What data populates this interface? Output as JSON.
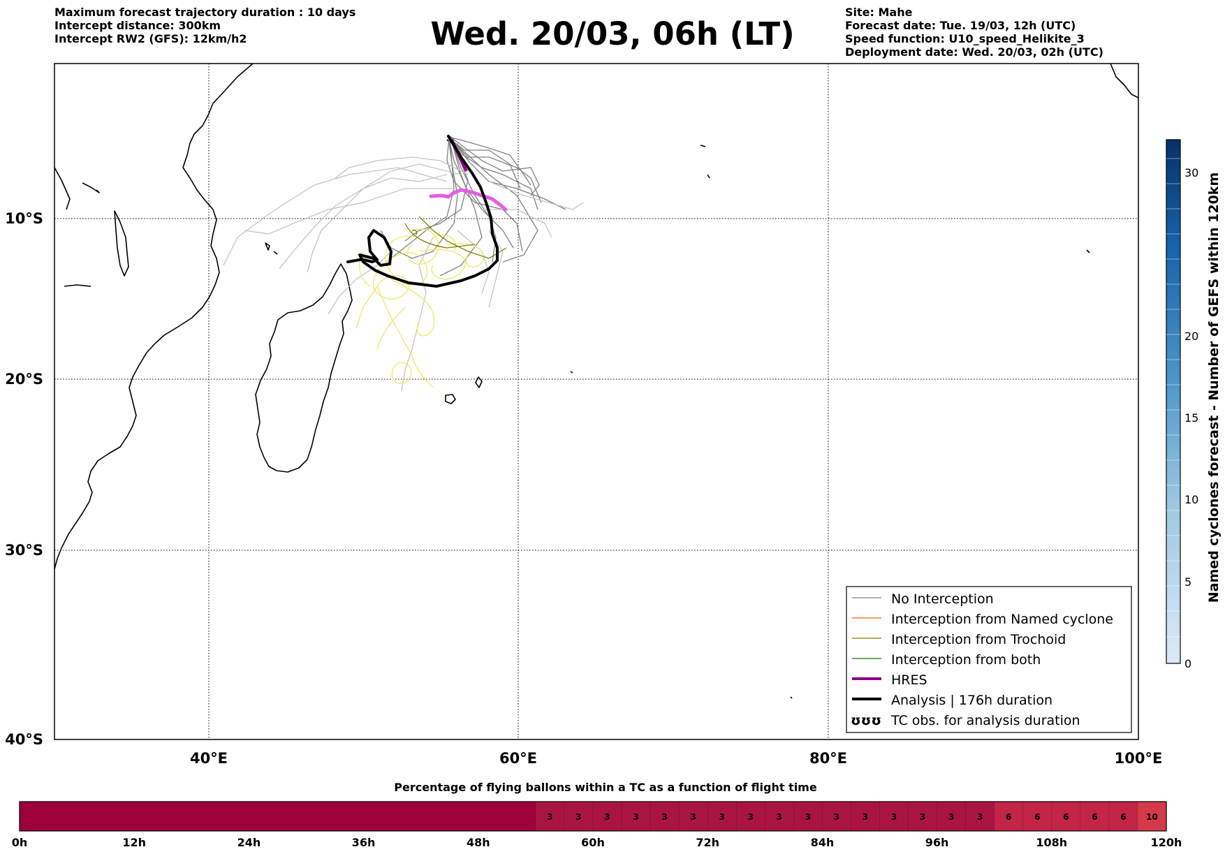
{
  "header": {
    "left": [
      "Maximum forecast trajectory duration : 10 days",
      "Intercept distance: 300km",
      "Intercept RW2 (GFS):  12km/h2"
    ],
    "right": [
      "Site: Mahe",
      "Forecast date: Tue. 19/03, 12h (UTC)",
      "Speed function: U10_speed_Helikite_3",
      "Deployment date: Wed. 20/03, 02h (UTC)"
    ],
    "title": "Wed. 20/03, 06h (LT)"
  },
  "map": {
    "lon_ticks": [
      "40°E",
      "60°E",
      "80°E",
      "100°E"
    ],
    "lat_ticks": [
      "10°S",
      "20°S",
      "30°S",
      "40°S"
    ],
    "grid": "dotted"
  },
  "legend": {
    "items": [
      {
        "label": "No Interception",
        "color": "#808080"
      },
      {
        "label": "Interception from Named cyclone",
        "color": "#ff5a00"
      },
      {
        "label": "Interception from Trochoid",
        "color": "#808000"
      },
      {
        "label": "Interception from both",
        "color": "#008000"
      },
      {
        "label": "HRES",
        "color": "#8b008b"
      },
      {
        "label": "Analysis | 176h duration",
        "color": "#000000"
      },
      {
        "label": "TC obs. for analysis duration",
        "color": "#000000",
        "symbol": "ʊʊʊ"
      }
    ]
  },
  "colorbar": {
    "label": "Named cyclones forecast - Number of GEFS within 120km",
    "ticks": [
      "0",
      "5",
      "10",
      "15",
      "20",
      "30"
    ]
  },
  "timebar": {
    "title": "Percentage of flying ballons within a TC as a function of flight time",
    "tick_labels": [
      "0h",
      "12h",
      "24h",
      "36h",
      "48h",
      "60h",
      "72h",
      "84h",
      "96h",
      "108h",
      "120h"
    ],
    "cells": [
      "",
      "",
      "",
      "",
      "",
      "",
      "",
      "",
      "",
      "",
      "",
      "",
      "",
      "",
      "",
      "",
      "",
      "",
      "3",
      "3",
      "3",
      "3",
      "3",
      "3",
      "3",
      "3",
      "3",
      "3",
      "3",
      "3",
      "3",
      "3",
      "3",
      "3",
      "6",
      "6",
      "6",
      "6",
      "6",
      "10"
    ],
    "colors": {
      "0": "#9e0039",
      "3": "#aa1444",
      "6": "#c22545",
      "10": "#d63a4a"
    }
  }
}
